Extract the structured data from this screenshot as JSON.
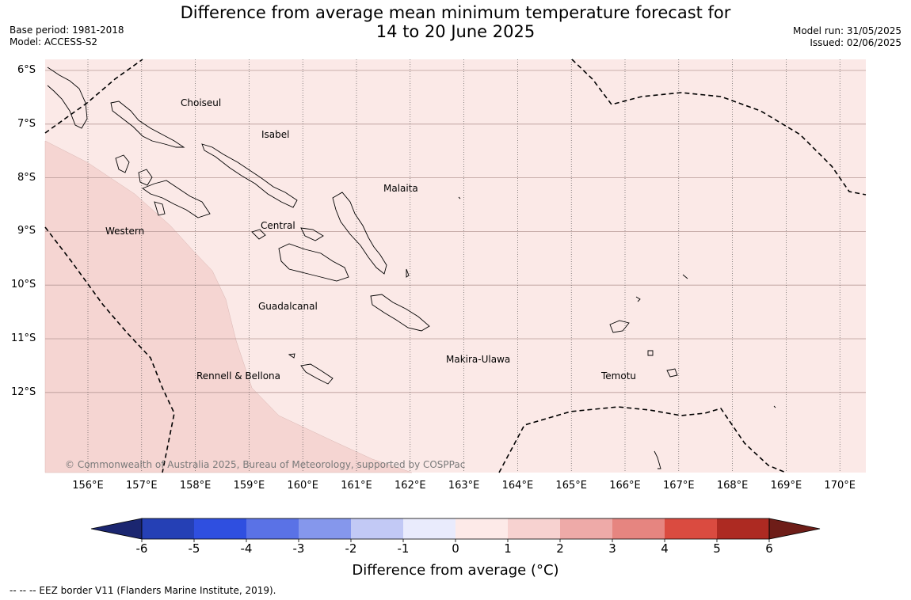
{
  "title": {
    "line1": "Difference from average mean minimum temperature forecast for",
    "line2": "14 to 20 June 2025"
  },
  "meta_left": {
    "base_period": "Base period: 1981-2018",
    "model": "Model: ACCESS-S2"
  },
  "meta_right": {
    "model_run": "Model run: 31/05/2025",
    "issued": "Issued: 02/06/2025"
  },
  "map": {
    "latitude_labels": [
      "6°S",
      "7°S",
      "8°S",
      "9°S",
      "10°S",
      "11°S",
      "12°S"
    ],
    "longitude_labels": [
      "156°E",
      "157°E",
      "158°E",
      "159°E",
      "160°E",
      "161°E",
      "162°E",
      "163°E",
      "164°E",
      "165°E",
      "166°E",
      "167°E",
      "168°E",
      "169°E",
      "170°E"
    ],
    "provinces": {
      "choiseul": "Choiseul",
      "isabel": "Isabel",
      "malaita": "Malaita",
      "western": "Western",
      "central": "Central",
      "guadalcanal": "Guadalcanal",
      "makira": "Makira-Ulawa",
      "rennell": "Rennell & Bellona",
      "temotu": "Temotu"
    },
    "copyright": "© Commonwealth of Australia 2025, Bureau of Meteorology, supported by COSPPac",
    "background_color": "#fbe9e7",
    "warm_region_color": "#f5d5d2"
  },
  "colorbar": {
    "ticks": [
      "-6",
      "-5",
      "-4",
      "-3",
      "-2",
      "-1",
      "0",
      "1",
      "2",
      "3",
      "4",
      "5",
      "6"
    ],
    "colors": [
      "#1b2670",
      "#2540b5",
      "#2f4fe0",
      "#5a72e6",
      "#8597ec",
      "#c2c9f5",
      "#e9ebfc",
      "#fdeae8",
      "#f7d2d0",
      "#eeaaa8",
      "#e68580",
      "#da4b40",
      "#ad2a22",
      "#6e1d18"
    ],
    "label": "Difference from average ( $^\\circ$C)",
    "label_display": "Difference from average (°C)"
  },
  "footer": "--  --  -- EEZ border V11 (Flanders Marine Institute, 2019)."
}
